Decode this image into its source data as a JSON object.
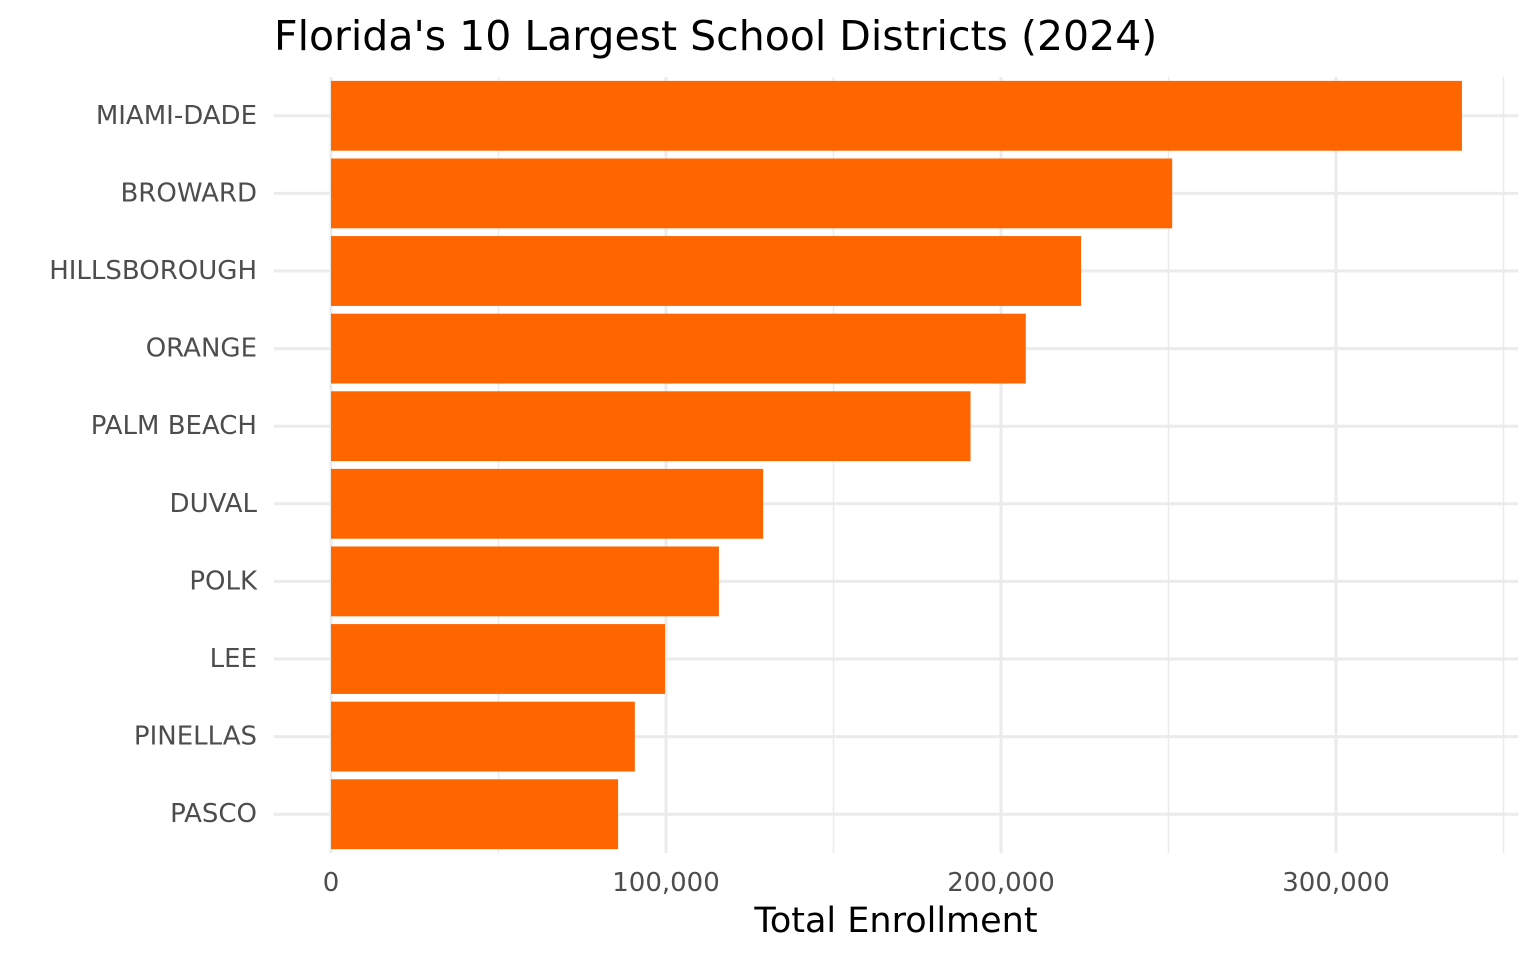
{
  "chart_data": {
    "type": "bar",
    "orientation": "horizontal",
    "title": "Florida's 10 Largest School Districts (2024)",
    "xlabel": "Total Enrollment",
    "ylabel": "",
    "categories": [
      "MIAMI-DADE",
      "BROWARD",
      "HILLSBOROUGH",
      "ORANGE",
      "PALM BEACH",
      "DUVAL",
      "POLK",
      "LEE",
      "PINELLAS",
      "PASCO"
    ],
    "values": [
      337600,
      251100,
      223900,
      207400,
      190900,
      129000,
      115800,
      99700,
      90700,
      85700
    ],
    "xlim": [
      0,
      350000
    ],
    "x_ticks": [
      0,
      100000,
      200000,
      300000
    ],
    "x_tick_labels": [
      "0",
      "100,000",
      "200,000",
      "300,000"
    ],
    "bar_color": "#ff6600",
    "grid": true,
    "legend": "none"
  }
}
